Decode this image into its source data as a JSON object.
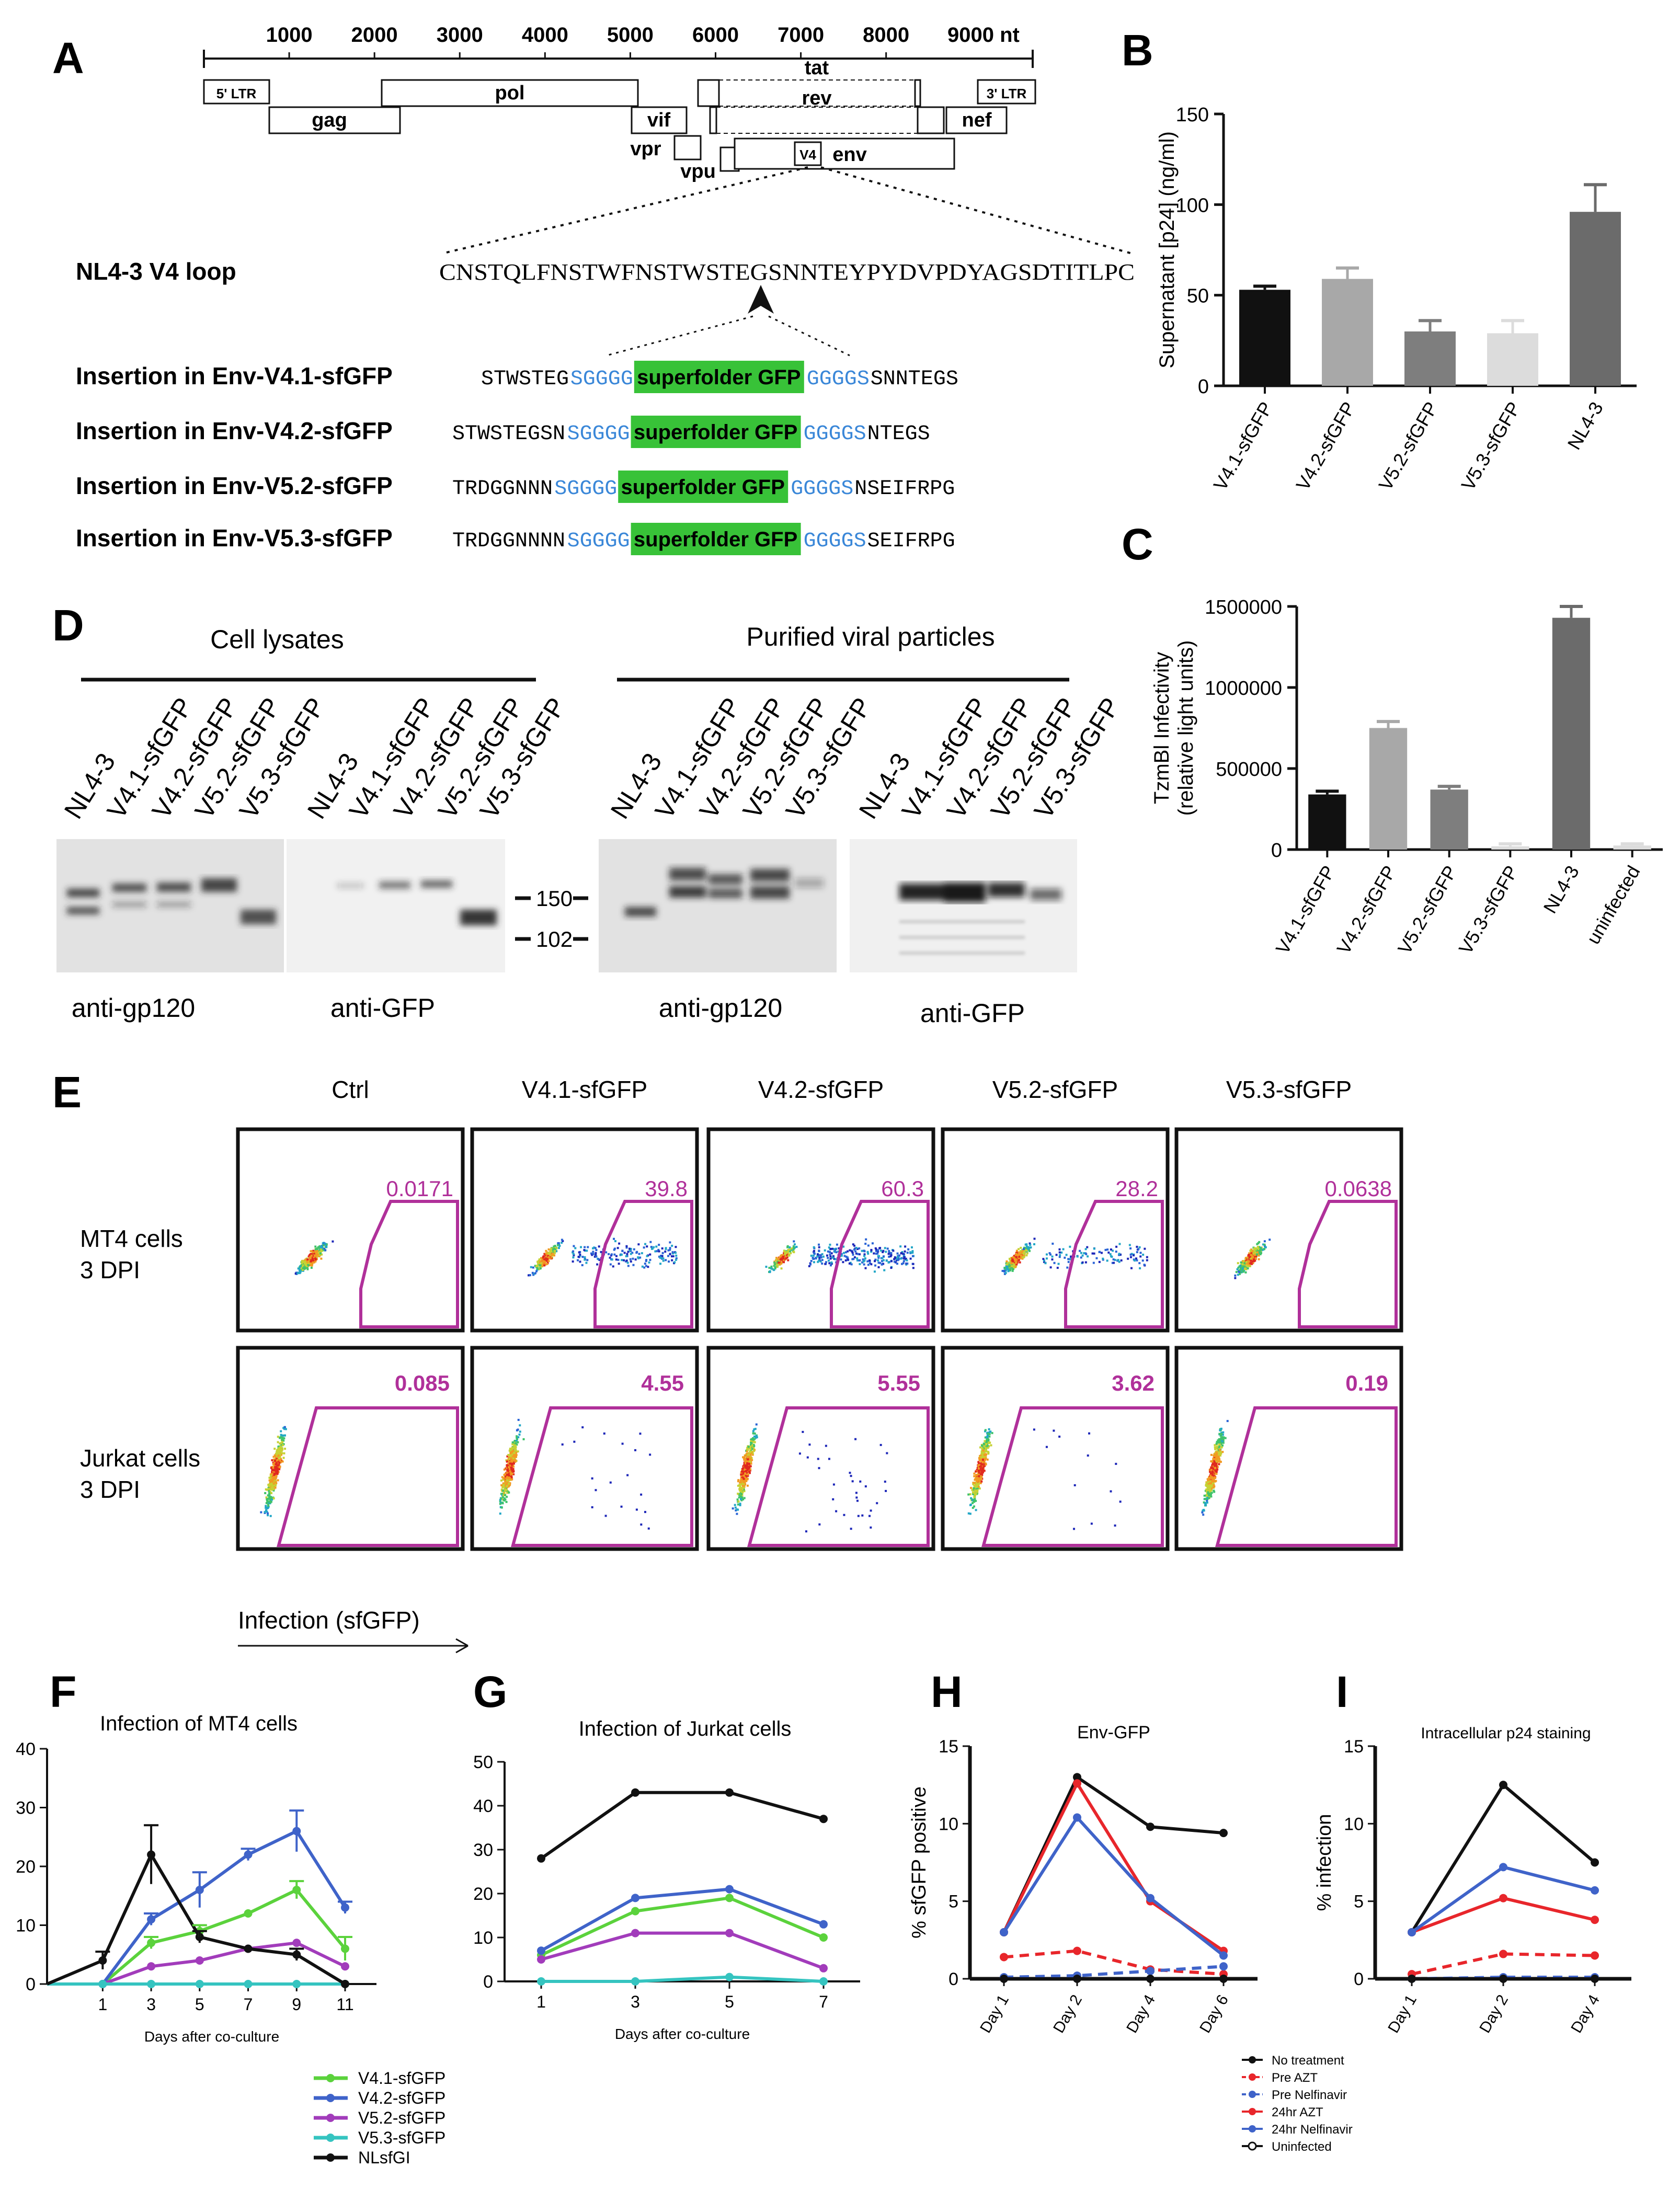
{
  "panel_letters": {
    "A": "A",
    "B": "B",
    "C": "C",
    "D": "D",
    "E": "E",
    "F": "F",
    "G": "G",
    "H": "H",
    "I": "I"
  },
  "genome_map": {
    "scale_ticks": [
      "1000",
      "2000",
      "3000",
      "4000",
      "5000",
      "6000",
      "7000",
      "8000"
    ],
    "scale_end_label": "9000 nt",
    "genes": {
      "ltr5": "5' LTR",
      "gag": "gag",
      "pol": "pol",
      "vif": "vif",
      "vpr": "vpr",
      "vpu": "vpu",
      "v4": "V4",
      "env": "env",
      "tat": "tat",
      "rev": "rev",
      "nef": "nef",
      "ltr3": "3' LTR"
    }
  },
  "v4_loop": {
    "label": "NL4-3 V4 loop",
    "sequence": "CNSTQLFNSTWFNSTWSTEGSNNTEYPYDVPDYAGSDTITLPC"
  },
  "insertions": [
    {
      "label": "Insertion in Env-V4.1-sfGFP",
      "left": "STWSTEG",
      "link1": "SGGGG",
      "gfp": "superfolder GFP",
      "link2": "GGGGS",
      "right": "SNNTEGS"
    },
    {
      "label": "Insertion in Env-V4.2-sfGFP",
      "left": "STWSTEGSN",
      "link1": "SGGGG",
      "gfp": "superfolder GFP",
      "link2": "GGGGS",
      "right": "NTEGS"
    },
    {
      "label": "Insertion in Env-V5.2-sfGFP",
      "left": "TRDGGNNN",
      "link1": "SGGGG",
      "gfp": "superfolder GFP",
      "link2": "GGGGS",
      "right": "NSEIFRPG"
    },
    {
      "label": "Insertion in Env-V5.3-sfGFP",
      "left": "TRDGGNNNN",
      "link1": "SGGGG",
      "gfp": "superfolder GFP",
      "link2": "GGGGS",
      "right": "SEIFRPG"
    }
  ],
  "colors": {
    "gfp_box": "#38c238",
    "linker": "#3a87d8",
    "gate": "#b0309a",
    "v41": "#5bd23c",
    "v42": "#3f63c9",
    "v52": "#a23cbb",
    "v53": "#35c4c0",
    "nlsfgi": "#111111",
    "notreat": "#111111",
    "preazt": "#e8262b",
    "prenelf": "#3f63c9"
  },
  "chart_data": [
    {
      "id": "B",
      "type": "bar",
      "ylabel": "Supernatant  [p24] (ng/ml)",
      "ylim": [
        0,
        150
      ],
      "yticks": [
        "0",
        "50",
        "100",
        "150"
      ],
      "categories": [
        "V4.1-sfGFP",
        "V4.2-sfGFP",
        "V5.2-sfGFP",
        "V5.3-sfGFP",
        "NL4-3"
      ],
      "values": [
        53,
        59,
        30,
        29,
        96
      ],
      "errors": [
        2,
        6,
        6,
        7,
        15
      ],
      "bar_colors": [
        "#111111",
        "#a8a8a8",
        "#7e7e7e",
        "#dcdcdc",
        "#6b6b6b"
      ]
    },
    {
      "id": "C",
      "type": "bar",
      "ylabel": "TzmBl Infectivity (relative light units)",
      "ylim": [
        0,
        1500000
      ],
      "yticks": [
        "0",
        "500000",
        "1000000",
        "1500000"
      ],
      "categories": [
        "V4.1-sfGFP",
        "V4.2-sfGFP",
        "V5.2-sfGFP",
        "V5.3-sfGFP",
        "NL4-3",
        "uninfected"
      ],
      "values": [
        340000,
        750000,
        370000,
        20000,
        1430000,
        25000
      ],
      "errors": [
        20000,
        40000,
        20000,
        15000,
        70000,
        10000
      ],
      "bar_colors": [
        "#111111",
        "#a8a8a8",
        "#7e7e7e",
        "#dcdcdc",
        "#6b6b6b",
        "#dcdcdc"
      ]
    },
    {
      "id": "F",
      "type": "line",
      "title": "Infection of MT4 cells",
      "xlabel": "Days after co-culture",
      "x": [
        1,
        3,
        5,
        7,
        9,
        11
      ],
      "xticks": [
        "1",
        "3",
        "5",
        "7",
        "9",
        "11"
      ],
      "ylim": [
        0,
        40
      ],
      "yticks": [
        "0",
        "10",
        "20",
        "30",
        "40"
      ],
      "series": [
        {
          "name": "V4.1-sfGFP",
          "color": "#5bd23c",
          "values": [
            0,
            7,
            9,
            12,
            16,
            6
          ],
          "x0": true
        },
        {
          "name": "V4.2-sfGFP",
          "color": "#3f63c9",
          "values": [
            0,
            11,
            16,
            22,
            26,
            13
          ],
          "x0": true
        },
        {
          "name": "V5.2-sfGFP",
          "color": "#a23cbb",
          "values": [
            0,
            3,
            4,
            6,
            7,
            3
          ],
          "x0": true
        },
        {
          "name": "V5.3-sfGFP",
          "color": "#35c4c0",
          "values": [
            0,
            0,
            0,
            0,
            0,
            0
          ],
          "x0": true
        },
        {
          "name": "NLsfGI",
          "color": "#111111",
          "values": [
            4,
            22,
            8,
            6,
            5,
            0
          ],
          "x0": true
        }
      ],
      "legend": [
        "V4.1-sfGFP",
        "V4.2-sfGFP",
        "V5.2-sfGFP",
        "V5.3-sfGFP",
        "NLsfGI"
      ]
    },
    {
      "id": "G",
      "type": "line",
      "title": "Infection of Jurkat cells",
      "xlabel": "Days after co-culture",
      "x": [
        1,
        3,
        5,
        7
      ],
      "xticks": [
        "1",
        "3",
        "5",
        "7"
      ],
      "ylim": [
        0,
        50
      ],
      "yticks": [
        "0",
        "10",
        "20",
        "30",
        "40",
        "50"
      ],
      "series": [
        {
          "name": "V4.1-sfGFP",
          "color": "#5bd23c",
          "values": [
            6,
            16,
            19,
            10
          ]
        },
        {
          "name": "V4.2-sfGFP",
          "color": "#3f63c9",
          "values": [
            7,
            19,
            21,
            13
          ]
        },
        {
          "name": "V5.2-sfGFP",
          "color": "#a23cbb",
          "values": [
            5,
            11,
            11,
            3
          ]
        },
        {
          "name": "V5.3-sfGFP",
          "color": "#35c4c0",
          "values": [
            0,
            0,
            1,
            0
          ]
        },
        {
          "name": "NLsfGI",
          "color": "#111111",
          "values": [
            28,
            43,
            43,
            37
          ]
        }
      ]
    },
    {
      "id": "H",
      "type": "line",
      "title": "Env-GFP",
      "ylabel": "% sfGFP positive",
      "x": [
        1,
        2,
        3,
        4
      ],
      "xticks": [
        "Day 1",
        "Day 2",
        "Day 4",
        "Day 6"
      ],
      "ylim": [
        0,
        15
      ],
      "yticks": [
        "0",
        "5",
        "10",
        "15"
      ],
      "series": [
        {
          "name": "No treatment",
          "color": "#111111",
          "values": [
            3,
            13,
            9.8,
            9.4
          ]
        },
        {
          "name": "Pre AZT",
          "color": "#e8262b",
          "values": [
            1.4,
            1.8,
            0.6,
            0.3
          ],
          "dash": true
        },
        {
          "name": "Pre Nelfinavir",
          "color": "#3f63c9",
          "values": [
            0.1,
            0.2,
            0.5,
            0.8
          ],
          "dash": true
        },
        {
          "name": "24hr AZT",
          "color": "#e8262b",
          "values": [
            3,
            12.6,
            5,
            1.8
          ]
        },
        {
          "name": "24hr Nelfinavir",
          "color": "#3f63c9",
          "values": [
            3,
            10.4,
            5.2,
            1.5
          ]
        },
        {
          "name": "Uninfected",
          "color": "#111111",
          "values": [
            0,
            0,
            0,
            0
          ]
        }
      ],
      "legend": [
        "No treatment",
        "Pre AZT",
        "Pre Nelfinavir",
        "24hr AZT",
        "24hr Nelfinavir",
        "Uninfected"
      ]
    },
    {
      "id": "I",
      "type": "line",
      "title": "Intracellular p24 staining",
      "ylabel": "% infection",
      "x": [
        1,
        2,
        3
      ],
      "xticks": [
        "Day 1",
        "Day 2",
        "Day 4"
      ],
      "ylim": [
        0,
        15
      ],
      "yticks": [
        "0",
        "5",
        "10",
        "15"
      ],
      "series": [
        {
          "name": "No treatment",
          "color": "#111111",
          "values": [
            3,
            12.5,
            7.5
          ]
        },
        {
          "name": "Pre AZT",
          "color": "#e8262b",
          "values": [
            0.3,
            1.6,
            1.5
          ],
          "dash": true
        },
        {
          "name": "Pre Nelfinavir",
          "color": "#3f63c9",
          "values": [
            0,
            0.1,
            0.1
          ],
          "dash": true
        },
        {
          "name": "24hr AZT",
          "color": "#e8262b",
          "values": [
            3,
            5.2,
            3.8
          ]
        },
        {
          "name": "24hr Nelfinavir",
          "color": "#3f63c9",
          "values": [
            3,
            7.2,
            5.7
          ]
        },
        {
          "name": "Uninfected",
          "color": "#111111",
          "values": [
            0,
            0,
            0
          ]
        }
      ]
    }
  ],
  "western": {
    "group_left": "Cell lysates",
    "group_right": "Purified viral particles",
    "lanes": [
      "NL4-3",
      "V4.1-sfGFP",
      "V4.2-sfGFP",
      "V5.2-sfGFP",
      "V5.3-sfGFP"
    ],
    "markers": [
      "150",
      "102"
    ],
    "blot_labels": [
      "anti-gp120",
      "anti-GFP",
      "anti-gp120",
      "anti-GFP"
    ]
  },
  "flow": {
    "columns": [
      "Ctrl",
      "V4.1-sfGFP",
      "V4.2-sfGFP",
      "V5.2-sfGFP",
      "V5.3-sfGFP"
    ],
    "row1": {
      "label1": "MT4 cells",
      "label2": "3 DPI",
      "values": [
        "0.0171",
        "39.8",
        "60.3",
        "28.2",
        "0.0638"
      ]
    },
    "row2": {
      "label1": "Jurkat cells",
      "label2": "3 DPI",
      "values": [
        "0.085",
        "4.55",
        "5.55",
        "3.62",
        "0.19"
      ]
    },
    "axis_label": "Infection (sfGFP)"
  }
}
